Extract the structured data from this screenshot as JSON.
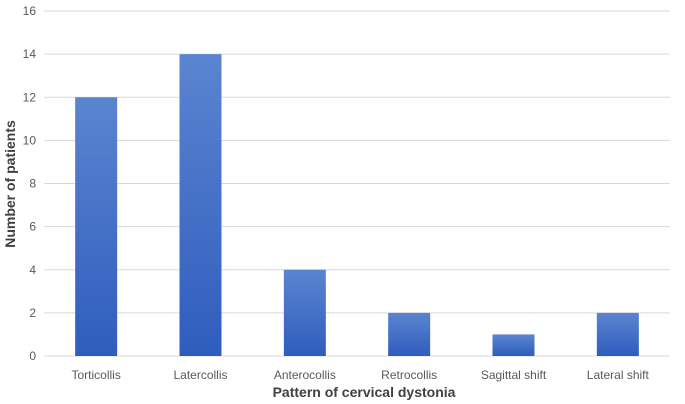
{
  "chart_data": {
    "type": "bar",
    "title": "",
    "xlabel": "Pattern of cervical dystonia",
    "ylabel": "Number of patients",
    "categories": [
      "Torticollis",
      "Latercollis",
      "Anterocollis",
      "Retrocollis",
      "Sagittal shift",
      "Lateral shift"
    ],
    "values": [
      12,
      14,
      4,
      2,
      1,
      2
    ],
    "ylim": [
      0,
      16
    ],
    "yticks": [
      0,
      2,
      4,
      6,
      8,
      10,
      12,
      14,
      16
    ],
    "grid": true,
    "legend": "none",
    "colors": {
      "bar_top": "#5B84D0",
      "bar_bottom": "#2F5DBE",
      "grid": "#D9D9D9",
      "tick_text": "#595959",
      "title_text": "#404040"
    }
  }
}
